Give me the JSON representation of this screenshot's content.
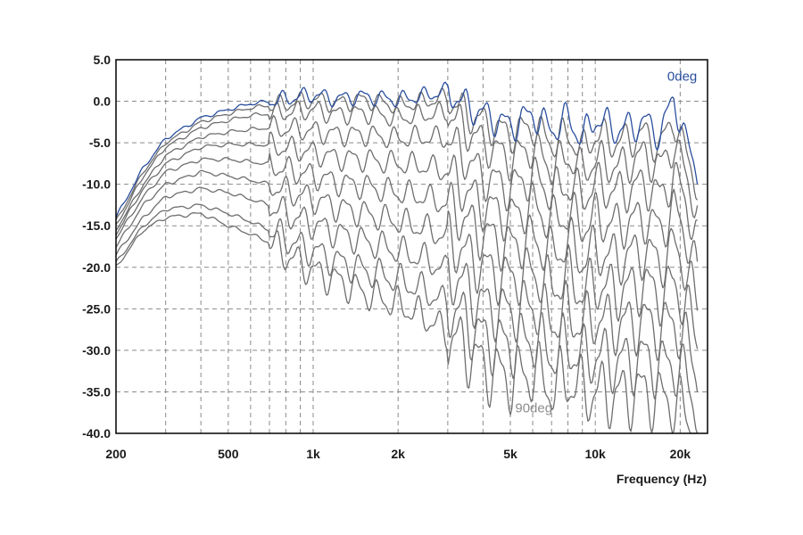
{
  "chart_data": {
    "type": "line",
    "xscale": "log",
    "xlim": [
      200,
      25000
    ],
    "ylim": [
      -40,
      5
    ],
    "grid": true,
    "xlabel": "Frequency (Hz)",
    "ylabel": "",
    "x_ticks": [
      {
        "value": 200,
        "label": "200"
      },
      {
        "value": 500,
        "label": "500"
      },
      {
        "value": 1000,
        "label": "1k"
      },
      {
        "value": 2000,
        "label": "2k"
      },
      {
        "value": 5000,
        "label": "5k"
      },
      {
        "value": 10000,
        "label": "10k"
      },
      {
        "value": 20000,
        "label": "20k"
      }
    ],
    "x_minor_grid": [
      300,
      400,
      600,
      700,
      800,
      900,
      3000,
      4000,
      6000,
      7000,
      8000,
      9000
    ],
    "y_ticks": [
      {
        "value": 5,
        "label": "5.0"
      },
      {
        "value": 0,
        "label": "0.0"
      },
      {
        "value": -5,
        "label": "-5.0"
      },
      {
        "value": -10,
        "label": "-10.0"
      },
      {
        "value": -15,
        "label": "-15.0"
      },
      {
        "value": -20,
        "label": "-20.0"
      },
      {
        "value": -25,
        "label": "-25.0"
      },
      {
        "value": -30,
        "label": "-30.0"
      },
      {
        "value": -35,
        "label": "-35.0"
      },
      {
        "value": -40,
        "label": "-40.0"
      }
    ],
    "x": [
      200,
      250,
      300,
      400,
      500,
      600,
      700,
      800,
      900,
      1000,
      1200,
      1500,
      2000,
      2500,
      3000,
      3500,
      4000,
      5000,
      6000,
      7000,
      8000,
      9000,
      10000,
      12000,
      15000,
      17000,
      19000,
      21000,
      23000
    ],
    "series": [
      {
        "name": "0deg",
        "color": "#2a4f9e",
        "label_at": [
          18000,
          2.5
        ],
        "values": [
          -14,
          -8,
          -4.5,
          -2,
          -1,
          -0.3,
          0,
          0.3,
          0.6,
          0.8,
          0.3,
          0.6,
          0.2,
          0.7,
          1.3,
          -0.5,
          -1.5,
          -3,
          -1.5,
          -3.5,
          -2,
          -4.5,
          -2,
          -3.5,
          -2.5,
          -4,
          0.5,
          -5,
          -8.5
        ]
      },
      {
        "values": [
          -14.5,
          -8.5,
          -5,
          -2.5,
          -1.5,
          -0.8,
          -0.5,
          -0.3,
          0,
          0.2,
          -0.3,
          0.2,
          -0.5,
          0,
          0.5,
          -1.5,
          -2.5,
          -4,
          -3,
          -5,
          -4,
          -6,
          -4,
          -5,
          -4,
          -5.5,
          -2,
          -6.5,
          -10
        ]
      },
      {
        "values": [
          -15,
          -9,
          -5.5,
          -3.2,
          -2.3,
          -1.7,
          -1.5,
          -1.3,
          -1.2,
          -1,
          -1.6,
          -1.4,
          -2,
          -1.6,
          -1.3,
          -3.5,
          -5,
          -7,
          -5.5,
          -8,
          -6.5,
          -8.5,
          -7,
          -8,
          -6.5,
          -8,
          -5,
          -9,
          -13
        ]
      },
      {
        "values": [
          -15.5,
          -10,
          -6.5,
          -4.3,
          -3.7,
          -3.4,
          -3.2,
          -3.3,
          -3.4,
          -3.6,
          -4,
          -4,
          -4.5,
          -4.3,
          -4.5,
          -7,
          -9,
          -10.5,
          -9,
          -11,
          -10,
          -11.5,
          -10,
          -11,
          -10,
          -11.5,
          -9,
          -12,
          -17
        ]
      },
      {
        "values": [
          -16,
          -10.5,
          -7.5,
          -5.5,
          -5.2,
          -5.2,
          -5.3,
          -5.6,
          -5.9,
          -6.2,
          -6.8,
          -7,
          -7.5,
          -7.8,
          -8.5,
          -11,
          -12.5,
          -14,
          -12.5,
          -14.5,
          -13.5,
          -15,
          -14,
          -15,
          -14,
          -15.5,
          -13,
          -16,
          -21
        ]
      },
      {
        "values": [
          -16.5,
          -11.5,
          -8.5,
          -7,
          -7,
          -7.3,
          -7.6,
          -8.2,
          -8.6,
          -9,
          -9.7,
          -10.2,
          -11,
          -11.5,
          -12.5,
          -14.5,
          -16,
          -17.5,
          -16.5,
          -18.5,
          -17,
          -19,
          -18,
          -19,
          -18,
          -19.5,
          -17.5,
          -20,
          -25
        ]
      },
      {
        "values": [
          -17.5,
          -12.5,
          -10,
          -8.5,
          -9,
          -9.5,
          -10,
          -10.8,
          -11.3,
          -11.8,
          -12.7,
          -13.5,
          -14.5,
          -15.3,
          -16.5,
          -18.5,
          -20,
          -21.5,
          -20.5,
          -22.5,
          -21,
          -23,
          -22,
          -23,
          -22,
          -23.5,
          -22,
          -24.5,
          -29
        ]
      },
      {
        "values": [
          -18.5,
          -14,
          -11.5,
          -10.5,
          -11,
          -11.8,
          -12.5,
          -13.5,
          -14.2,
          -14.8,
          -15.8,
          -16.8,
          -18,
          -19,
          -20.5,
          -22.5,
          -24.5,
          -25.5,
          -24.5,
          -26.5,
          -25.5,
          -27,
          -26,
          -27,
          -26.5,
          -27.5,
          -26.5,
          -29,
          -33
        ]
      },
      {
        "values": [
          -19.5,
          -15,
          -13,
          -12.5,
          -13.5,
          -14.5,
          -15.5,
          -16.5,
          -17.5,
          -18,
          -19.2,
          -20.3,
          -21.5,
          -22.8,
          -24.5,
          -26.5,
          -28.5,
          -29.5,
          -28.5,
          -30.5,
          -29.5,
          -31,
          -30.5,
          -31.5,
          -31,
          -32,
          -31.5,
          -33.5,
          -37
        ]
      },
      {
        "name": "90deg",
        "color": "#8c8c8c",
        "label_at": [
          5200,
          -37.5
        ],
        "values": [
          -20,
          -15.5,
          -14,
          -13.5,
          -15,
          -16,
          -17,
          -18.5,
          -19.5,
          -20.5,
          -21.5,
          -23,
          -24.5,
          -26,
          -28,
          -30,
          -32,
          -33.5,
          -32.5,
          -34.5,
          -33.5,
          -35,
          -35,
          -35.5,
          -35,
          -36,
          -36,
          -38,
          -40
        ]
      }
    ]
  },
  "colors": {
    "off_axis": "#6e6e6e",
    "grid": "#8a8a8a",
    "frame": "#000000"
  }
}
